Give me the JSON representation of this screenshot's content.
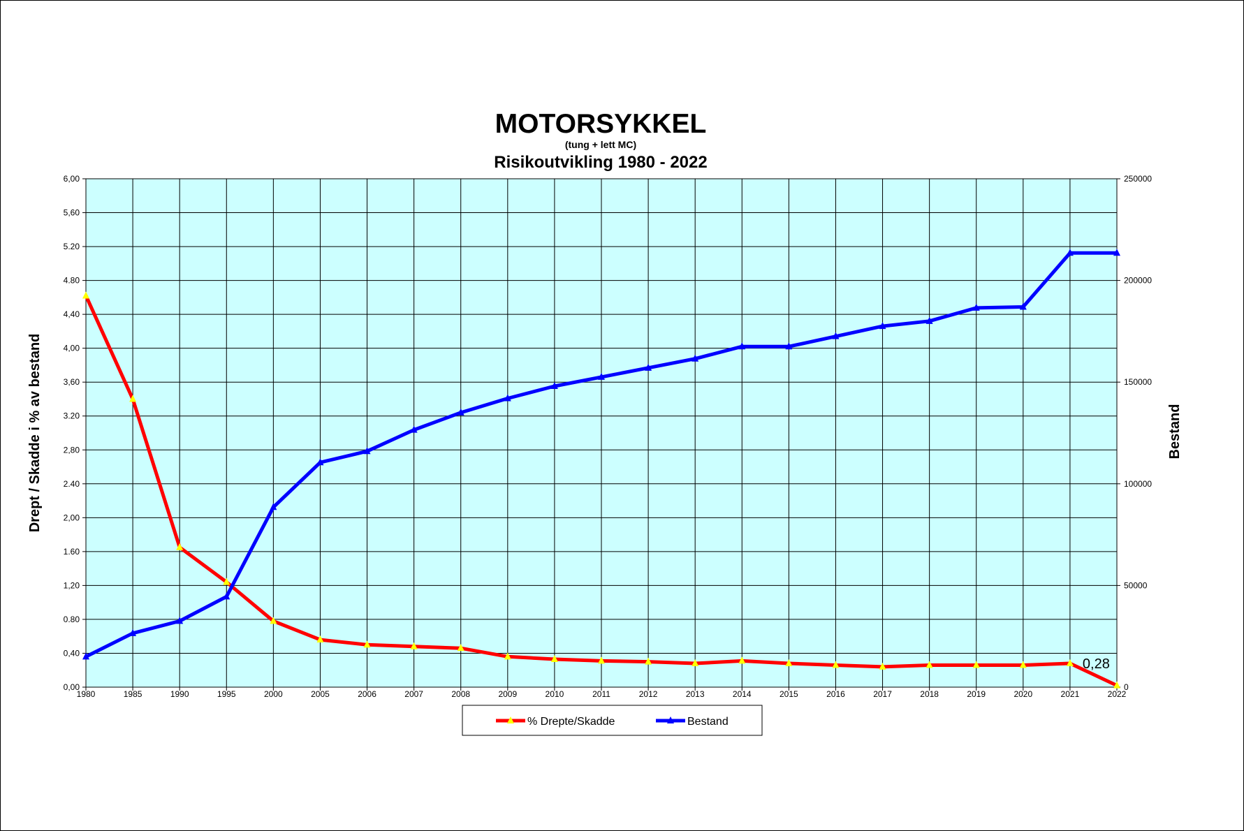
{
  "chart_data": {
    "type": "line",
    "title": "MOTORSYKKEL",
    "subtitle_small": "(tung + lett MC)",
    "subtitle": "Risikoutvikling 1980 - 2022",
    "ylabel_left": "Drept / Skadde i % av bestand",
    "ylabel_right": "Bestand",
    "categories": [
      "1980",
      "1985",
      "1990",
      "1995",
      "2000",
      "2005",
      "2006",
      "2007",
      "2008",
      "2009",
      "2010",
      "2011",
      "2012",
      "2013",
      "2014",
      "2015",
      "2016",
      "2017",
      "2018",
      "2019",
      "2020",
      "2021",
      "2022"
    ],
    "y_left_ticks": [
      "0,00",
      "0,40",
      "0.80",
      "1,20",
      "1.60",
      "2,00",
      "2.40",
      "2,80",
      "3.20",
      "3,60",
      "4,00",
      "4,40",
      "4.80",
      "5.20",
      "5,60",
      "6,00"
    ],
    "y_right_ticks": [
      "0",
      "50000",
      "100000",
      "150000",
      "200000",
      "250000"
    ],
    "y_left_range": [
      0,
      6
    ],
    "y_right_range": [
      0,
      250000
    ],
    "grid": true,
    "legend_position": "bottom",
    "series": [
      {
        "name": "% Drepte/Skadde",
        "axis": "left",
        "color": "#ff0000",
        "marker_color": "#ffff00",
        "values": [
          4.62,
          3.4,
          1.65,
          1.24,
          0.78,
          0.56,
          0.5,
          0.48,
          0.46,
          0.36,
          0.33,
          0.31,
          0.3,
          0.28,
          0.31,
          0.28,
          0.26,
          0.24,
          0.26,
          0.26,
          0.26,
          0.28,
          0.02
        ]
      },
      {
        "name": "Bestand",
        "axis": "right",
        "color": "#0000ff",
        "marker_color": "#0000ff",
        "values": [
          15000,
          26500,
          32500,
          44500,
          88500,
          110500,
          116000,
          126500,
          135000,
          142000,
          148000,
          152500,
          157000,
          161500,
          167500,
          167500,
          172500,
          177500,
          180000,
          186500,
          187000,
          213500,
          213500
        ]
      }
    ],
    "annotations": [
      {
        "text": "0,28",
        "category": "2021"
      }
    ]
  }
}
